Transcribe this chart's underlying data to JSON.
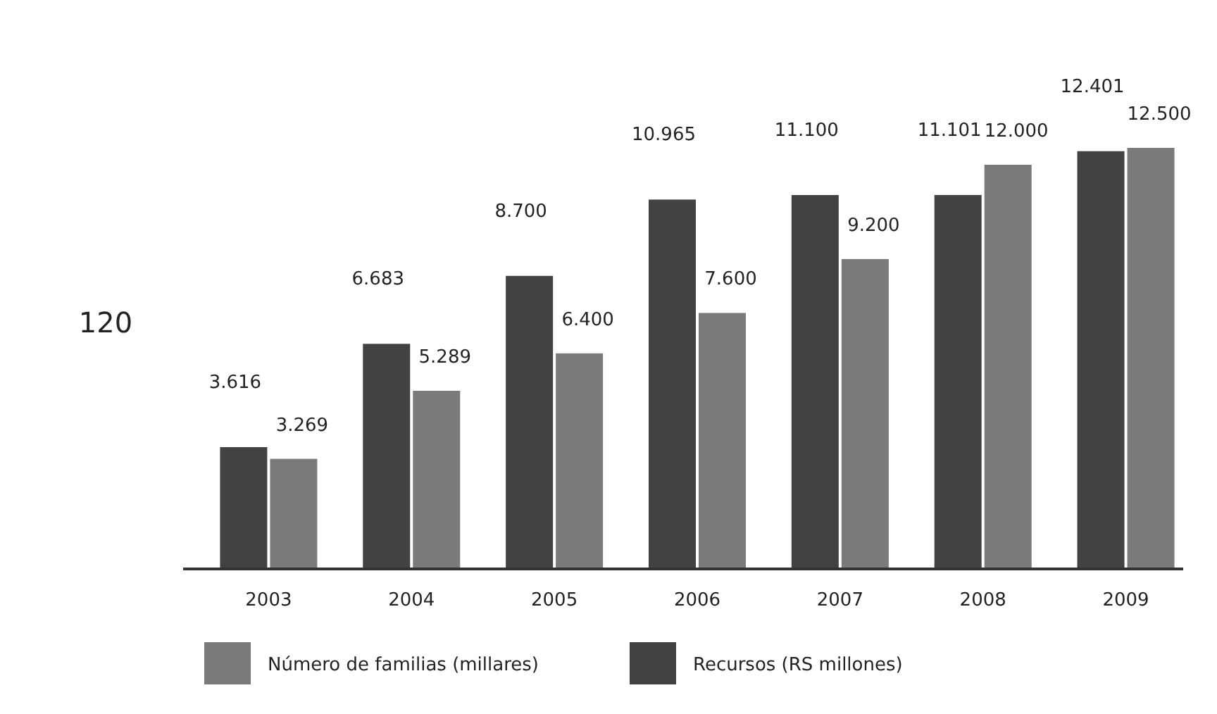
{
  "chart_data": {
    "type": "bar",
    "categories": [
      "2003",
      "2004",
      "2005",
      "2006",
      "2007",
      "2008",
      "2009"
    ],
    "series": [
      {
        "name": "Recursos (RS millones)",
        "color": "#424242",
        "values": [
          3616,
          6683,
          8700,
          10965,
          11100,
          11101,
          12401
        ],
        "value_labels": [
          "3.616",
          "6.683",
          "8.700",
          "10.965",
          "11.100",
          "11.101",
          "12.401"
        ]
      },
      {
        "name": "Número de familias (millares)",
        "color": "#7a7a7a",
        "values": [
          3269,
          5289,
          6400,
          7600,
          9200,
          12000,
          12500
        ],
        "value_labels": [
          "3.269",
          "5.289",
          "6.400",
          "7.600",
          "9.200",
          "12.000",
          "12.500"
        ]
      }
    ],
    "annotations": [
      "120"
    ],
    "legend": "bottom",
    "tick_labels": "x"
  }
}
